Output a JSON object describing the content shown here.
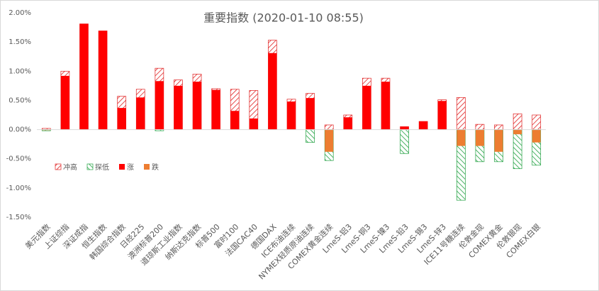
{
  "chart_data": {
    "type": "bar",
    "title": "重要指数 (2020-01-10 08:55)",
    "categories": [
      "美元指数",
      "上证综指",
      "深证成指",
      "恒生指数",
      "韩国综合指数",
      "日经225",
      "澳洲标普200",
      "道琼斯工业指数",
      "纳斯达克指数",
      "标普500",
      "富时100",
      "法国CAC40",
      "德国DAX",
      "ICE布油连续",
      "NYMEX轻质原油连续",
      "COMEX黄金连续",
      "LmeS-铝3",
      "LmeS-铜3",
      "LmeS-镍3",
      "LmeS-铅3",
      "LmeS-锡3",
      "LmeS-锌3",
      "ICE11号糖连续",
      "伦敦金现",
      "COMEX黄金",
      "伦敦银现",
      "COMEX白银"
    ],
    "series": [
      {
        "name": "冲高",
        "color": "#e02020",
        "pattern": "hatch",
        "values": [
          0.02,
          1.0,
          1.81,
          1.69,
          0.57,
          0.69,
          1.05,
          0.85,
          0.95,
          0.7,
          0.69,
          0.67,
          1.53,
          0.52,
          0.62,
          0.08,
          0.25,
          0.88,
          0.88,
          0.05,
          0.14,
          0.51,
          0.55,
          0.09,
          0.08,
          0.27,
          0.25
        ]
      },
      {
        "name": "探低",
        "color": "#20a040",
        "pattern": "hatch",
        "values": [
          -0.02,
          null,
          null,
          null,
          null,
          null,
          -0.02,
          null,
          null,
          null,
          null,
          null,
          null,
          null,
          -0.22,
          -0.53,
          null,
          null,
          null,
          -0.41,
          null,
          null,
          -1.21,
          -0.55,
          -0.55,
          -0.67,
          -0.61
        ]
      },
      {
        "name": "涨",
        "color": "#ff0000",
        "pattern": "solid",
        "values": [
          null,
          0.92,
          1.81,
          1.69,
          0.37,
          0.55,
          0.83,
          0.75,
          0.82,
          0.68,
          0.32,
          0.19,
          1.31,
          0.48,
          0.54,
          null,
          0.21,
          0.75,
          0.82,
          0.05,
          0.14,
          0.49,
          null,
          null,
          null,
          null,
          null
        ]
      },
      {
        "name": "跌",
        "color": "#ed7d31",
        "pattern": "solid",
        "values": [
          -0.01,
          null,
          null,
          null,
          null,
          null,
          null,
          null,
          null,
          null,
          null,
          null,
          null,
          null,
          null,
          -0.38,
          null,
          null,
          null,
          null,
          null,
          null,
          -0.28,
          -0.28,
          -0.38,
          -0.08,
          -0.22
        ]
      }
    ],
    "ylim": [
      -1.5,
      2.0
    ],
    "yticks": [
      {
        "value": -1.5,
        "label": "-1.50%"
      },
      {
        "value": -1.0,
        "label": "-1.00%"
      },
      {
        "value": -0.5,
        "label": "-0.50%"
      },
      {
        "value": 0,
        "label": "0.00%"
      },
      {
        "value": 0.5,
        "label": "0.50%"
      },
      {
        "value": 1.0,
        "label": "1.00%"
      },
      {
        "value": 1.5,
        "label": "1.50%"
      },
      {
        "value": 2.0,
        "label": "2.00%"
      }
    ],
    "grid": false,
    "legend": "left"
  }
}
